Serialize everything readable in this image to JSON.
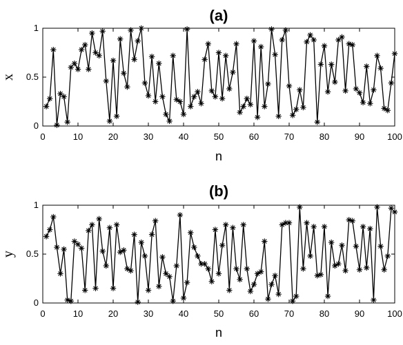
{
  "chart_data": [
    {
      "type": "line",
      "title": "(a)",
      "xlabel": "n",
      "ylabel": "x",
      "xlim": [
        0,
        100
      ],
      "ylim": [
        0,
        1
      ],
      "xticks": [
        "0",
        "10",
        "20",
        "30",
        "40",
        "50",
        "60",
        "70",
        "80",
        "90",
        "100"
      ],
      "yticks": [
        "0",
        "0.5",
        "1"
      ],
      "marker": "asterisk",
      "color": "#000000",
      "series": [
        {
          "x": [
            1,
            2,
            3,
            4,
            5,
            6,
            7,
            8,
            9,
            10,
            11,
            12,
            13,
            14,
            15,
            16,
            17,
            18,
            19,
            20,
            21,
            22,
            23,
            24,
            25,
            26,
            27,
            28,
            29,
            30,
            31,
            32,
            33,
            34,
            35,
            36,
            37,
            38,
            39,
            40,
            41,
            42,
            43,
            44,
            45,
            46,
            47,
            48,
            49,
            50,
            51,
            52,
            53,
            54,
            55,
            56,
            57,
            58,
            59,
            60,
            61,
            62,
            63,
            64,
            65,
            66,
            67,
            68,
            69,
            70,
            71,
            72,
            73,
            74,
            75,
            76,
            77,
            78,
            79,
            80,
            81,
            82,
            83,
            84,
            85,
            86,
            87,
            88,
            89,
            90,
            91,
            92,
            93,
            94,
            95,
            96,
            97,
            98,
            99,
            100
          ],
          "values": [
            0.2,
            0.28,
            0.78,
            0.01,
            0.33,
            0.3,
            0.04,
            0.6,
            0.64,
            0.58,
            0.78,
            0.83,
            0.58,
            0.95,
            0.75,
            0.72,
            0.97,
            0.46,
            0.05,
            0.67,
            0.1,
            0.89,
            0.54,
            0.4,
            0.98,
            0.68,
            0.87,
            1.0,
            0.44,
            0.31,
            0.71,
            0.25,
            0.64,
            0.3,
            0.12,
            0.05,
            0.72,
            0.27,
            0.25,
            0.12,
            0.99,
            0.2,
            0.3,
            0.35,
            0.23,
            0.68,
            0.84,
            0.36,
            0.3,
            0.75,
            0.28,
            0.72,
            0.38,
            0.55,
            0.84,
            0.14,
            0.2,
            0.28,
            0.22,
            0.87,
            0.09,
            0.81,
            0.2,
            0.43,
            0.99,
            0.73,
            0.1,
            0.88,
            0.98,
            0.41,
            0.11,
            0.17,
            0.37,
            0.19,
            0.86,
            0.93,
            0.88,
            0.04,
            0.63,
            0.82,
            0.35,
            0.63,
            0.45,
            0.88,
            0.91,
            0.36,
            0.84,
            0.83,
            0.38,
            0.34,
            0.24,
            0.61,
            0.23,
            0.37,
            0.72,
            0.59,
            0.18,
            0.16,
            0.44,
            0.74
          ]
        }
      ]
    },
    {
      "type": "line",
      "title": "(b)",
      "xlabel": "n",
      "ylabel": "y",
      "xlim": [
        0,
        100
      ],
      "ylim": [
        0,
        1
      ],
      "xticks": [
        "0",
        "10",
        "20",
        "30",
        "40",
        "50",
        "60",
        "70",
        "80",
        "90",
        "100"
      ],
      "yticks": [
        "0",
        "0.5",
        "1"
      ],
      "marker": "asterisk",
      "color": "#000000",
      "series": [
        {
          "x": [
            1,
            2,
            3,
            4,
            5,
            6,
            7,
            8,
            9,
            10,
            11,
            12,
            13,
            14,
            15,
            16,
            17,
            18,
            19,
            20,
            21,
            22,
            23,
            24,
            25,
            26,
            27,
            28,
            29,
            30,
            31,
            32,
            33,
            34,
            35,
            36,
            37,
            38,
            39,
            40,
            41,
            42,
            43,
            44,
            45,
            46,
            47,
            48,
            49,
            50,
            51,
            52,
            53,
            54,
            55,
            56,
            57,
            58,
            59,
            60,
            61,
            62,
            63,
            64,
            65,
            66,
            67,
            68,
            69,
            70,
            71,
            72,
            73,
            74,
            75,
            76,
            77,
            78,
            79,
            80,
            81,
            82,
            83,
            84,
            85,
            86,
            87,
            88,
            89,
            90,
            91,
            92,
            93,
            94,
            95,
            96,
            97,
            98,
            99,
            100
          ],
          "values": [
            0.68,
            0.75,
            0.88,
            0.57,
            0.3,
            0.55,
            0.03,
            0.02,
            0.63,
            0.6,
            0.56,
            0.13,
            0.74,
            0.8,
            0.15,
            0.86,
            0.53,
            0.38,
            0.77,
            0.15,
            0.8,
            0.52,
            0.54,
            0.35,
            0.33,
            0.7,
            0.01,
            0.62,
            0.48,
            0.13,
            0.7,
            0.84,
            0.17,
            0.47,
            0.3,
            0.27,
            0.02,
            0.38,
            0.9,
            0.05,
            0.21,
            0.72,
            0.57,
            0.48,
            0.4,
            0.4,
            0.35,
            0.22,
            0.75,
            0.3,
            0.59,
            0.8,
            0.13,
            0.77,
            0.35,
            0.24,
            0.8,
            0.35,
            0.12,
            0.19,
            0.3,
            0.32,
            0.63,
            0.04,
            0.19,
            0.28,
            0.09,
            0.8,
            0.82,
            0.82,
            0.02,
            0.07,
            0.98,
            0.35,
            0.82,
            0.48,
            0.78,
            0.28,
            0.29,
            0.78,
            0.07,
            0.62,
            0.38,
            0.4,
            0.59,
            0.33,
            0.85,
            0.84,
            0.58,
            0.34,
            0.78,
            0.36,
            0.76,
            0.03,
            0.98,
            0.58,
            0.34,
            0.48,
            0.97,
            0.93
          ]
        }
      ]
    }
  ]
}
